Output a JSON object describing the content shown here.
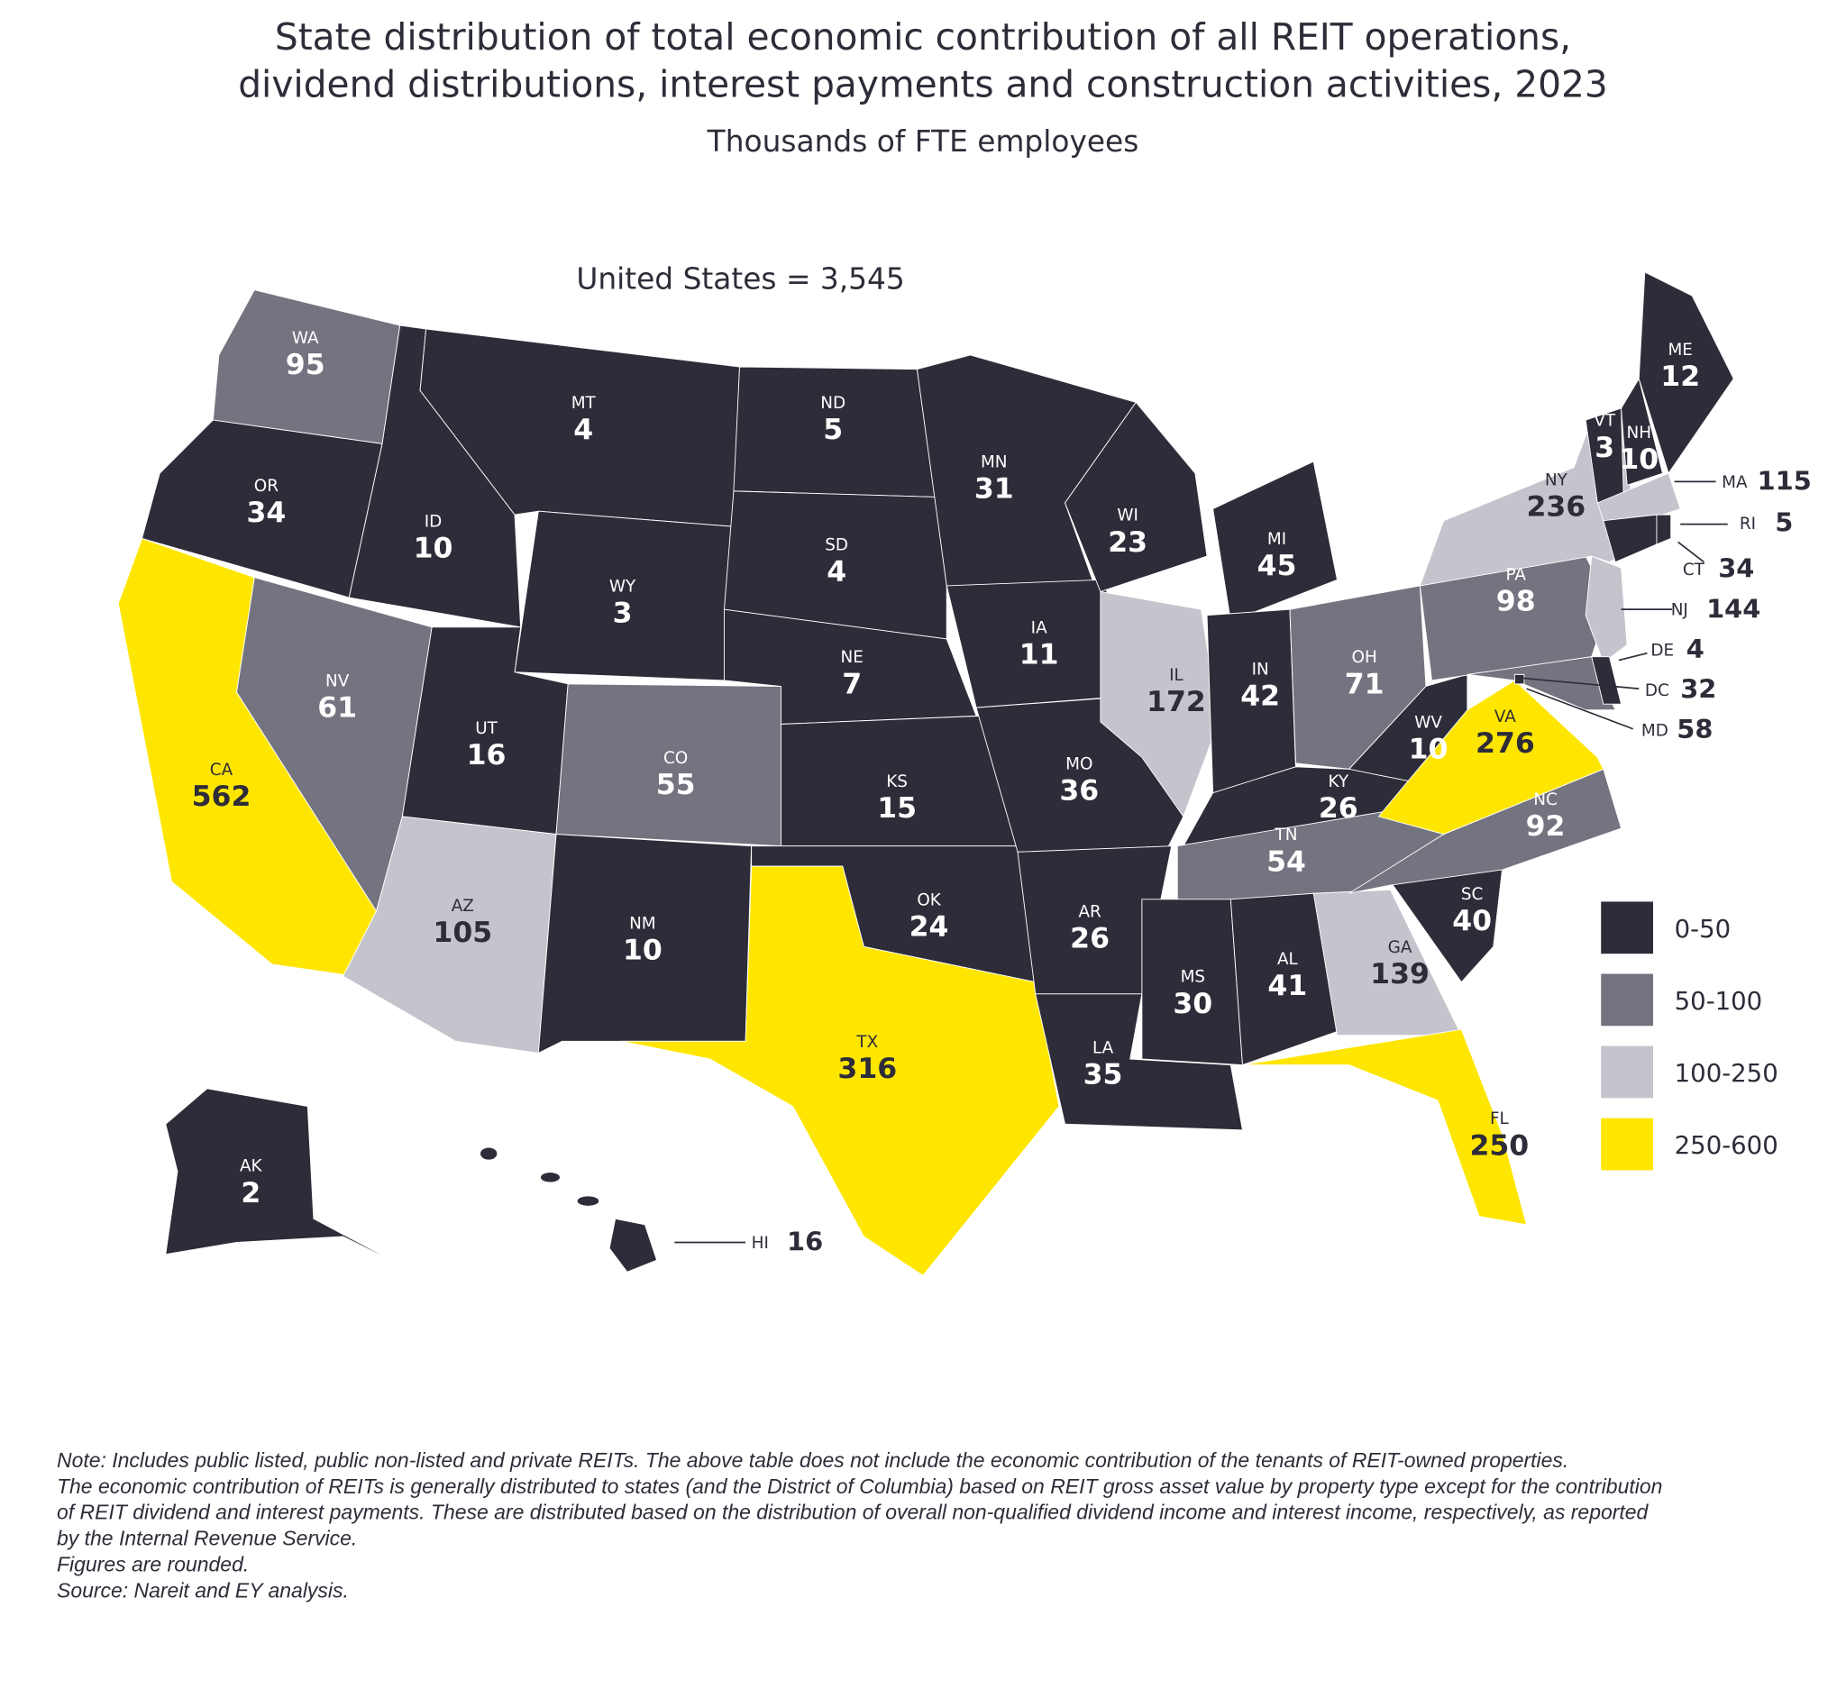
{
  "title_lines": [
    "State distribution of total economic contribution of all REIT operations,",
    "dividend distributions, interest payments and construction activities, 2023"
  ],
  "subtitle": "Thousands of FTE employees",
  "us_total": "United States = 3,545",
  "colors": {
    "0-50": "#2e2c38",
    "50-100": "#747480",
    "100-250": "#c4c4cc",
    "250-600": "#ffe600"
  },
  "legend": [
    {
      "label": "0-50",
      "color": "#2e2c38"
    },
    {
      "label": "50-100",
      "color": "#747480"
    },
    {
      "label": "100-250",
      "color": "#c4c4cc"
    },
    {
      "label": "250-600",
      "color": "#ffe600"
    }
  ],
  "states": [
    {
      "abbr": "WA",
      "value": 95
    },
    {
      "abbr": "OR",
      "value": 34
    },
    {
      "abbr": "CA",
      "value": 562
    },
    {
      "abbr": "NV",
      "value": 61
    },
    {
      "abbr": "ID",
      "value": 10
    },
    {
      "abbr": "MT",
      "value": 4
    },
    {
      "abbr": "WY",
      "value": 3
    },
    {
      "abbr": "UT",
      "value": 16
    },
    {
      "abbr": "AZ",
      "value": 105
    },
    {
      "abbr": "CO",
      "value": 55
    },
    {
      "abbr": "NM",
      "value": 10
    },
    {
      "abbr": "ND",
      "value": 5
    },
    {
      "abbr": "SD",
      "value": 4
    },
    {
      "abbr": "NE",
      "value": 7
    },
    {
      "abbr": "KS",
      "value": 15
    },
    {
      "abbr": "OK",
      "value": 24
    },
    {
      "abbr": "TX",
      "value": 316
    },
    {
      "abbr": "MN",
      "value": 31
    },
    {
      "abbr": "IA",
      "value": 11
    },
    {
      "abbr": "MO",
      "value": 36
    },
    {
      "abbr": "AR",
      "value": 26
    },
    {
      "abbr": "LA",
      "value": 35
    },
    {
      "abbr": "WI",
      "value": 23
    },
    {
      "abbr": "IL",
      "value": 172
    },
    {
      "abbr": "MI",
      "value": 45
    },
    {
      "abbr": "IN",
      "value": 42
    },
    {
      "abbr": "OH",
      "value": 71
    },
    {
      "abbr": "KY",
      "value": 26
    },
    {
      "abbr": "TN",
      "value": 54
    },
    {
      "abbr": "MS",
      "value": 30
    },
    {
      "abbr": "AL",
      "value": 41
    },
    {
      "abbr": "GA",
      "value": 139
    },
    {
      "abbr": "FL",
      "value": 250
    },
    {
      "abbr": "SC",
      "value": 40
    },
    {
      "abbr": "NC",
      "value": 92
    },
    {
      "abbr": "VA",
      "value": 276
    },
    {
      "abbr": "WV",
      "value": 10
    },
    {
      "abbr": "PA",
      "value": 98
    },
    {
      "abbr": "NY",
      "value": 236
    },
    {
      "abbr": "NJ",
      "value": 144
    },
    {
      "abbr": "MD",
      "value": 58
    },
    {
      "abbr": "DE",
      "value": 4
    },
    {
      "abbr": "DC",
      "value": 32
    },
    {
      "abbr": "VT",
      "value": 3
    },
    {
      "abbr": "NH",
      "value": 10
    },
    {
      "abbr": "ME",
      "value": 12
    },
    {
      "abbr": "MA",
      "value": 115
    },
    {
      "abbr": "CT",
      "value": 34
    },
    {
      "abbr": "RI",
      "value": 5
    },
    {
      "abbr": "AK",
      "value": 2
    },
    {
      "abbr": "HI",
      "value": 16
    }
  ],
  "notes": [
    "Note: Includes public listed, public non-listed and private REITs. The above table does not include the economic contribution of the tenants of REIT-owned properties.",
    "The economic contribution of REITs is generally distributed to states (and the District of Columbia) based on REIT gross asset value by property type except for the contribution",
    "of REIT dividend and interest payments. These are distributed based on the distribution of overall non-qualified dividend income and interest income, respectively, as reported",
    "by the Internal Revenue Service.",
    "Figures are rounded.",
    "Source: Nareit and EY analysis."
  ]
}
